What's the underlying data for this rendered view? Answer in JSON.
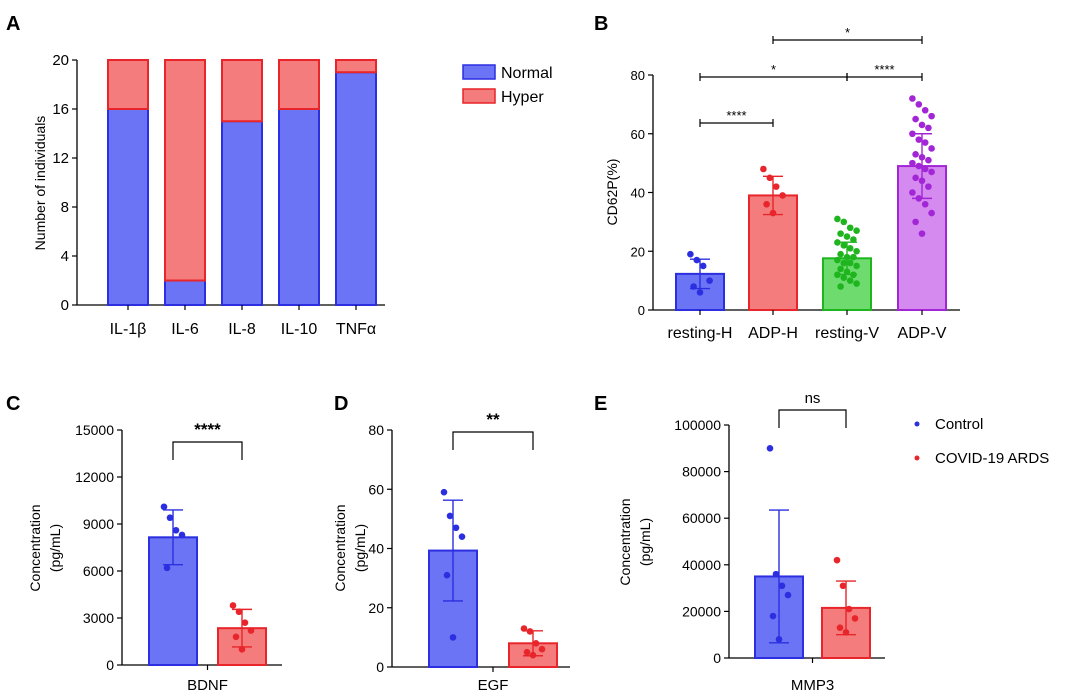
{
  "colors": {
    "normal_fill": "#6B74F5",
    "normal_edge": "#2B2FE0",
    "hyper_fill": "#F47C7C",
    "hyper_edge": "#E8252A",
    "resting_v_fill": "#6EDB6E",
    "resting_v_edge": "#1FB51F",
    "adp_v_fill": "#D58AF0",
    "adp_v_edge": "#A326D6",
    "control": "#2B2FE0",
    "ards": "#E8252A"
  },
  "chart_data": [
    {
      "panel": "A",
      "type": "bar",
      "stacked": true,
      "categories": [
        "IL-1β",
        "IL-6",
        "IL-8",
        "IL-10",
        "TNFα"
      ],
      "series": [
        {
          "name": "Normal",
          "values": [
            16,
            2,
            15,
            16,
            19
          ]
        },
        {
          "name": "Hyper",
          "values": [
            4,
            18,
            5,
            4,
            1
          ]
        }
      ],
      "ylabel": "Number of individuals",
      "ylim": [
        0,
        20
      ],
      "yticks": [
        "0",
        "4",
        "8",
        "12",
        "16",
        "20"
      ],
      "legend": "right"
    },
    {
      "panel": "B",
      "type": "bar",
      "categories": [
        "resting-H",
        "ADP-H",
        "resting-V",
        "ADP-V"
      ],
      "values": [
        12.3,
        39.0,
        17.6,
        49.0
      ],
      "sd": [
        5.0,
        6.5,
        5.5,
        11.0
      ],
      "points": [
        [
          19,
          17,
          15,
          10,
          8,
          6
        ],
        [
          48,
          45,
          42,
          39,
          36,
          33
        ],
        [
          31,
          30,
          28,
          27,
          26,
          25,
          24,
          23,
          22,
          21,
          20,
          19,
          18,
          18,
          17,
          16,
          16,
          15,
          14,
          13,
          12,
          12,
          11,
          10,
          9,
          8
        ],
        [
          72,
          70,
          68,
          66,
          65,
          63,
          62,
          60,
          58,
          57,
          55,
          53,
          52,
          51,
          50,
          49,
          48,
          47,
          45,
          44,
          42,
          40,
          38,
          36,
          33,
          30,
          26
        ]
      ],
      "ylabel": "CD62P(%)",
      "ylim": [
        0,
        80
      ],
      "yticks": [
        "0",
        "20",
        "40",
        "60",
        "80"
      ],
      "significance": [
        {
          "from": 0,
          "to": 1,
          "label": "****"
        },
        {
          "from": 0,
          "to": 2,
          "label": "*"
        },
        {
          "from": 2,
          "to": 3,
          "label": "****"
        },
        {
          "from": 1,
          "to": 3,
          "label": "*"
        }
      ]
    },
    {
      "panel": "C",
      "type": "bar",
      "categories": [
        "Control",
        "COVID-19 ARDS"
      ],
      "values": [
        8150,
        2350
      ],
      "sd": [
        1750,
        1200
      ],
      "points": [
        [
          10100,
          9400,
          8600,
          8300,
          6200
        ],
        [
          3800,
          3400,
          2700,
          2200,
          1800,
          1000
        ]
      ],
      "xlabel": "BDNF",
      "ylabel": "Concentration (pg/mL)",
      "ylim": [
        0,
        15000
      ],
      "yticks": [
        "0",
        "3000",
        "6000",
        "9000",
        "12000",
        "15000"
      ],
      "significance": {
        "label": "****"
      }
    },
    {
      "panel": "D",
      "type": "bar",
      "categories": [
        "Control",
        "COVID-19 ARDS"
      ],
      "values": [
        39.3,
        8.0
      ],
      "sd": [
        17.0,
        4.2
      ],
      "points": [
        [
          59,
          51,
          47,
          44,
          31,
          10
        ],
        [
          13,
          12,
          8,
          6,
          5,
          4
        ]
      ],
      "xlabel": "EGF",
      "ylabel": "Concentration (pg/mL)",
      "ylim": [
        0,
        80
      ],
      "yticks": [
        "0",
        "20",
        "40",
        "60",
        "80"
      ],
      "significance": {
        "label": "**"
      }
    },
    {
      "panel": "E",
      "type": "bar",
      "categories": [
        "Control",
        "COVID-19 ARDS"
      ],
      "values": [
        35000,
        21500
      ],
      "sd": [
        28500,
        11500
      ],
      "points": [
        [
          90000,
          36000,
          31000,
          27000,
          18000,
          8000
        ],
        [
          42000,
          31000,
          21000,
          17000,
          13000,
          11000
        ]
      ],
      "xlabel": "MMP3",
      "ylabel": "Concentration (pg/mL)",
      "ylim": [
        0,
        100000
      ],
      "yticks": [
        "0",
        "20000",
        "40000",
        "60000",
        "80000",
        "100000"
      ],
      "significance": {
        "label": "ns"
      }
    }
  ],
  "labels": {
    "panel_a": "A",
    "panel_b": "B",
    "panel_c": "C",
    "panel_d": "D",
    "panel_e": "E",
    "a_ylabel": "Number of individuals",
    "a_legend_normal": "Normal",
    "a_legend_hyper": "Hyper",
    "b_ylabel": "CD62P(%)",
    "conc_label_1": "Concentration",
    "conc_label_2": "(pg/mL)",
    "legend_control": "Control",
    "legend_ards": "COVID-19 ARDS"
  }
}
